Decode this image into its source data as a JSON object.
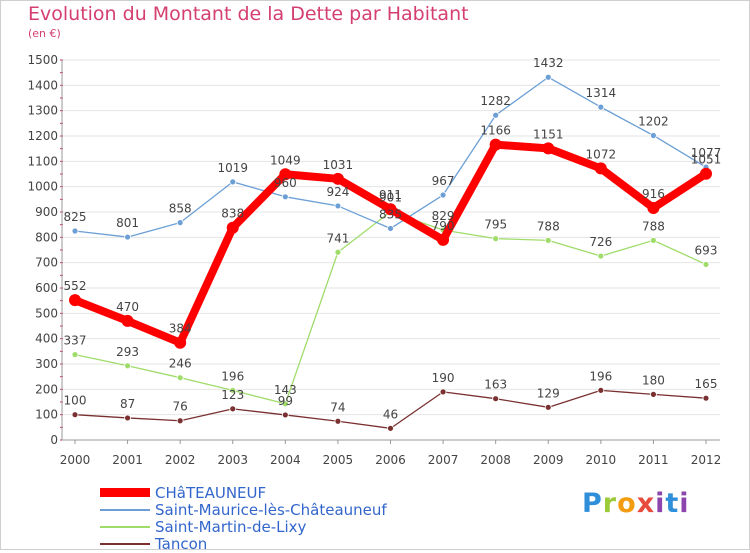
{
  "title": "Evolution du Montant de la Dette par Habitant",
  "subtitle": "(en €)",
  "logo_text": "Proxiti",
  "chart_data": {
    "type": "line",
    "title": "Evolution du Montant de la Dette par Habitant",
    "subtitle": "(en €)",
    "x": [
      "2000",
      "2001",
      "2002",
      "2003",
      "2004",
      "2005",
      "2006",
      "2007",
      "2008",
      "2009",
      "2010",
      "2011",
      "2012"
    ],
    "ylim": [
      0,
      1500
    ],
    "yticks": [
      "0",
      "100",
      "200",
      "300",
      "400",
      "500",
      "600",
      "700",
      "800",
      "900",
      "1000",
      "1100",
      "1200",
      "1300",
      "1400",
      "1500"
    ],
    "grid": true,
    "legend": "bottom-left",
    "series": [
      {
        "name": "CHâTEAUNEUF",
        "color": "#ff0000",
        "values": [
          552,
          470,
          384,
          838,
          1049,
          1031,
          911,
          790,
          1166,
          1151,
          1072,
          916,
          1051
        ],
        "labels": [
          "552",
          "470",
          "384",
          "838",
          "1049",
          "1031",
          "911",
          "790",
          "1166",
          "1151",
          "1072",
          "916",
          "1051"
        ]
      },
      {
        "name": "Saint-Maurice-lès-Châteauneuf",
        "color": "#6b9fd6",
        "values": [
          825,
          801,
          858,
          1019,
          960,
          924,
          835,
          967,
          1282,
          1432,
          1314,
          1202,
          1077
        ],
        "labels": [
          "825",
          "801",
          "858",
          "1019",
          "960",
          "924",
          "835",
          "967",
          "1282",
          "1432",
          "1314",
          "1202",
          "1077"
        ]
      },
      {
        "name": "Saint-Martin-de-Lixy",
        "color": "#9fdc6a",
        "values": [
          337,
          293,
          246,
          196,
          143,
          741,
          901,
          829,
          795,
          788,
          726,
          788,
          693
        ],
        "labels": [
          "337",
          "293",
          "246",
          "196",
          "143",
          "741",
          "901",
          "829",
          "795",
          "788",
          "726",
          "788",
          "693"
        ]
      },
      {
        "name": "Tancon",
        "color": "#7a3030",
        "values": [
          100,
          87,
          76,
          123,
          99,
          74,
          46,
          190,
          163,
          129,
          196,
          180,
          165
        ],
        "labels": [
          "100",
          "87",
          "76",
          "123",
          "99",
          "74",
          "46",
          "190",
          "163",
          "129",
          "196",
          "180",
          "165"
        ]
      }
    ]
  }
}
